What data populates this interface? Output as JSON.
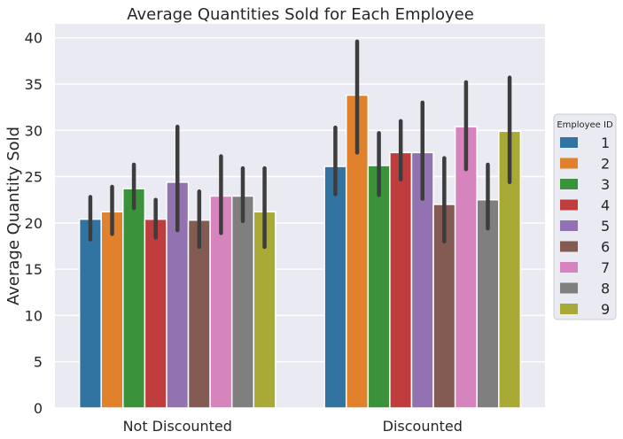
{
  "chart_data": {
    "type": "bar",
    "title": "Average Quantities Sold for Each Employee",
    "xlabel": "",
    "ylabel": "Average Quantity Sold",
    "categories": [
      "Not Discounted",
      "Discounted"
    ],
    "ylim": [
      0,
      41.5
    ],
    "yticks": [
      0,
      5,
      10,
      15,
      20,
      25,
      30,
      35,
      40
    ],
    "grid": true,
    "legend": {
      "title": "Employee ID",
      "placement": "center-right"
    },
    "series": [
      {
        "name": "1",
        "color": "#3274a1",
        "values": [
          20.4,
          26.1
        ],
        "err_low": [
          18.2,
          23.1
        ],
        "err_high": [
          22.8,
          30.3
        ]
      },
      {
        "name": "2",
        "color": "#e1812c",
        "values": [
          21.2,
          33.8
        ],
        "err_low": [
          18.8,
          27.6
        ],
        "err_high": [
          23.9,
          39.6
        ]
      },
      {
        "name": "3",
        "color": "#3a923a",
        "values": [
          23.7,
          26.2
        ],
        "err_low": [
          21.6,
          23.0
        ],
        "err_high": [
          26.3,
          29.7
        ]
      },
      {
        "name": "4",
        "color": "#c03d3e",
        "values": [
          20.4,
          27.6
        ],
        "err_low": [
          18.4,
          24.7
        ],
        "err_high": [
          22.5,
          31.0
        ]
      },
      {
        "name": "5",
        "color": "#9372b2",
        "values": [
          24.4,
          27.6
        ],
        "err_low": [
          19.2,
          22.6
        ],
        "err_high": [
          30.4,
          33.0
        ]
      },
      {
        "name": "6",
        "color": "#845b53",
        "values": [
          20.3,
          22.0
        ],
        "err_low": [
          17.4,
          18.0
        ],
        "err_high": [
          23.4,
          27.0
        ]
      },
      {
        "name": "7",
        "color": "#d684bd",
        "values": [
          22.9,
          30.4
        ],
        "err_low": [
          18.9,
          25.8
        ],
        "err_high": [
          27.2,
          35.2
        ]
      },
      {
        "name": "8",
        "color": "#7f7f7f",
        "values": [
          22.9,
          22.5
        ],
        "err_low": [
          20.2,
          19.4
        ],
        "err_high": [
          25.9,
          26.3
        ]
      },
      {
        "name": "9",
        "color": "#a9aa35",
        "values": [
          21.2,
          29.9
        ],
        "err_low": [
          17.4,
          24.4
        ],
        "err_high": [
          25.9,
          35.7
        ]
      }
    ]
  }
}
